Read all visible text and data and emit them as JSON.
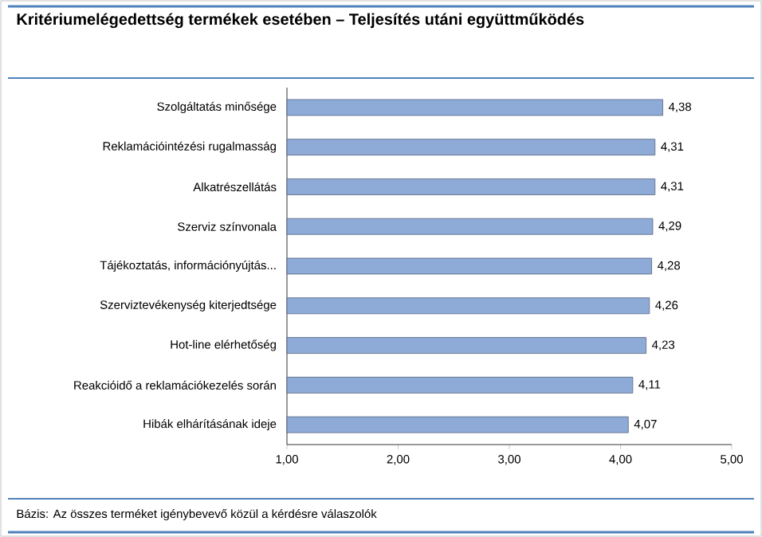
{
  "chart_data": {
    "type": "bar",
    "orientation": "horizontal",
    "title": "Kritériumelégedettség termékek esetében – Teljesítés utáni együttműködés",
    "categories": [
      "Szolgáltatás minősége",
      "Reklamációintézési rugalmasság",
      "Alkatrészellátás",
      "Szerviz színvonala",
      "Tájékoztatás, információnyújtás...",
      "Szerviztevékenység kiterjedtsége",
      "Hot-line elérhetőség",
      "Reakcióidő a reklamációkezelés során",
      "Hibák elhárításának ideje"
    ],
    "values": [
      4.38,
      4.31,
      4.31,
      4.29,
      4.28,
      4.26,
      4.23,
      4.11,
      4.07
    ],
    "value_labels": [
      "4,38",
      "4,31",
      "4,31",
      "4,29",
      "4,28",
      "4,26",
      "4,23",
      "4,11",
      "4,07"
    ],
    "color": "#8eaad6",
    "xlim": [
      1,
      5
    ],
    "xticks": [
      {
        "value": 1,
        "label": "1,00"
      },
      {
        "value": 2,
        "label": "2,00"
      },
      {
        "value": 3,
        "label": "3,00"
      },
      {
        "value": 4,
        "label": "4,00"
      },
      {
        "value": 5,
        "label": "5,00"
      }
    ],
    "grid": false,
    "annotations": [
      "Bázis: Az összes terméket igénybevevő közül a kérdésre válaszolók"
    ]
  }
}
